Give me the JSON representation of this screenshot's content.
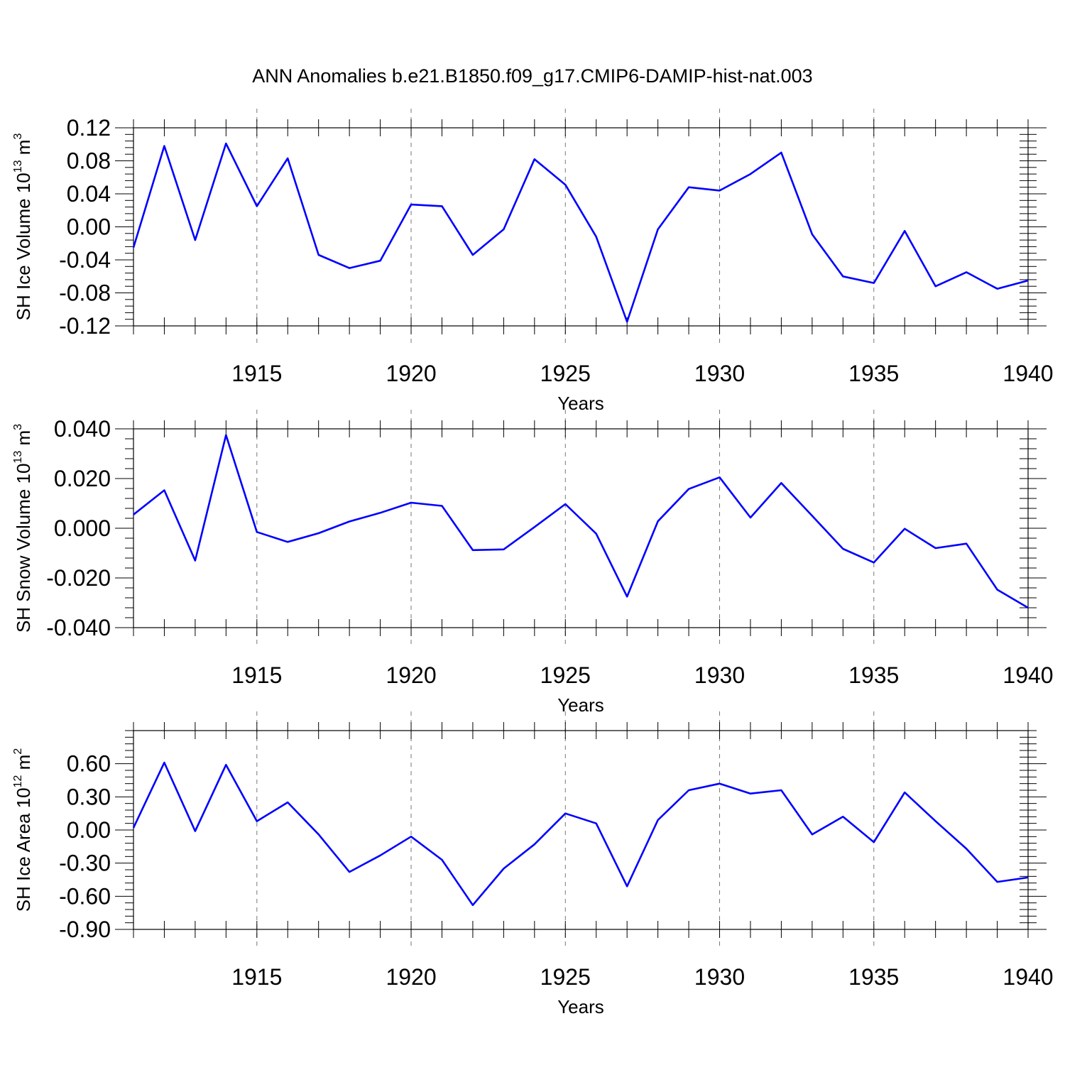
{
  "title": "ANN Anomalies b.e21.B1850.f09_g17.CMIP6-DAMIP-hist-nat.003",
  "colors": {
    "line": "#0000ff",
    "grid": "#777777"
  },
  "chart_data": [
    {
      "type": "line",
      "ylabel": {
        "main": "SH Ice Volume 10",
        "exp": "13",
        "unit": " m",
        "unit_exp": "3"
      },
      "xlabel": "Years",
      "xlim": [
        1911,
        1940
      ],
      "ylim": [
        -0.12,
        0.12
      ],
      "xticks": [
        "1915",
        "1920",
        "1925",
        "1930",
        "1935",
        "1940"
      ],
      "yticks": [
        "0.12",
        "0.08",
        "0.04",
        "0.00",
        "-0.04",
        "-0.08",
        "-0.12"
      ],
      "grid_x": [
        1915,
        1920,
        1925,
        1930,
        1935
      ],
      "x": [
        1911,
        1912,
        1913,
        1914,
        1915,
        1916,
        1917,
        1918,
        1919,
        1920,
        1921,
        1922,
        1923,
        1924,
        1925,
        1926,
        1927,
        1928,
        1929,
        1930,
        1931,
        1932,
        1933,
        1934,
        1935,
        1936,
        1937,
        1938,
        1939,
        1940
      ],
      "values": [
        -0.025,
        0.098,
        -0.016,
        0.101,
        0.025,
        0.083,
        -0.034,
        -0.05,
        -0.041,
        0.027,
        0.025,
        -0.034,
        -0.003,
        0.082,
        0.051,
        -0.012,
        -0.115,
        -0.003,
        0.048,
        0.044,
        0.064,
        0.09,
        -0.009,
        -0.06,
        -0.068,
        -0.005,
        -0.072,
        -0.055,
        -0.075,
        -0.065
      ]
    },
    {
      "type": "line",
      "ylabel": {
        "main": "SH Snow Volume 10",
        "exp": "13",
        "unit": " m",
        "unit_exp": "3"
      },
      "xlabel": "Years",
      "xlim": [
        1911,
        1940
      ],
      "ylim": [
        -0.04,
        0.04
      ],
      "xticks": [
        "1915",
        "1920",
        "1925",
        "1930",
        "1935",
        "1940"
      ],
      "yticks": [
        "0.040",
        "0.020",
        "0.000",
        "-0.020",
        "-0.040"
      ],
      "grid_x": [
        1915,
        1920,
        1925,
        1930,
        1935
      ],
      "x": [
        1911,
        1912,
        1913,
        1914,
        1915,
        1916,
        1917,
        1918,
        1919,
        1920,
        1921,
        1922,
        1923,
        1924,
        1925,
        1926,
        1927,
        1928,
        1929,
        1930,
        1931,
        1932,
        1933,
        1934,
        1935,
        1936,
        1937,
        1938,
        1939,
        1940
      ],
      "values": [
        0.0055,
        0.0153,
        -0.013,
        0.0375,
        -0.0015,
        -0.0055,
        -0.002,
        0.0027,
        0.0062,
        0.0103,
        0.009,
        -0.0088,
        -0.0085,
        0.0005,
        0.0097,
        -0.0022,
        -0.0275,
        0.0028,
        0.0158,
        0.0205,
        0.0043,
        0.0182,
        0.005,
        -0.0083,
        -0.0138,
        -0.0002,
        -0.008,
        -0.0062,
        -0.0247,
        -0.032
      ]
    },
    {
      "type": "line",
      "ylabel": {
        "main": "SH Ice Area 10",
        "exp": "12",
        "unit": " m",
        "unit_exp": "2"
      },
      "xlabel": "Years",
      "xlim": [
        1911,
        1940
      ],
      "ylim": [
        -0.9,
        0.9
      ],
      "xticks": [
        "1915",
        "1920",
        "1925",
        "1930",
        "1935",
        "1940"
      ],
      "yticks": [
        "0.60",
        "0.30",
        "0.00",
        "-0.30",
        "-0.60",
        "-0.90"
      ],
      "grid_x": [
        1915,
        1920,
        1925,
        1930,
        1935
      ],
      "x": [
        1911,
        1912,
        1913,
        1914,
        1915,
        1916,
        1917,
        1918,
        1919,
        1920,
        1921,
        1922,
        1923,
        1924,
        1925,
        1926,
        1927,
        1928,
        1929,
        1930,
        1931,
        1932,
        1933,
        1934,
        1935,
        1936,
        1937,
        1938,
        1939,
        1940
      ],
      "values": [
        0.02,
        0.61,
        -0.01,
        0.59,
        0.08,
        0.25,
        -0.04,
        -0.38,
        -0.23,
        -0.06,
        -0.27,
        -0.68,
        -0.35,
        -0.13,
        0.15,
        0.06,
        -0.51,
        0.09,
        0.36,
        0.42,
        0.33,
        0.36,
        -0.04,
        0.12,
        -0.11,
        0.34,
        0.08,
        -0.17,
        -0.47,
        -0.43
      ]
    }
  ]
}
